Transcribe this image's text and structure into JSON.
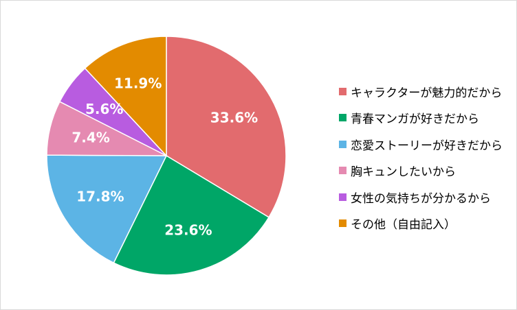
{
  "chart_data": {
    "type": "pie",
    "title": "",
    "start_angle_deg": 0,
    "direction": "clockwise",
    "legend_position": "right",
    "slices": [
      {
        "label": "キャラクターが魅力的だから",
        "value": 33.6,
        "display": "33.6%",
        "color": "#e26b6e"
      },
      {
        "label": "青春マンガが好きだから",
        "value": 23.6,
        "display": "23.6%",
        "color": "#00a667"
      },
      {
        "label": "恋愛ストーリーが好きだから",
        "value": 17.8,
        "display": "17.8%",
        "color": "#5cb4e5"
      },
      {
        "label": "胸キュンしたいから",
        "value": 7.4,
        "display": "7.4%",
        "color": "#e58ab1"
      },
      {
        "label": "女性の気持ちが分かるから",
        "value": 5.6,
        "display": "5.6%",
        "color": "#b85ce0"
      },
      {
        "label": "その他（自由記入）",
        "value": 11.9,
        "display": "11.9%",
        "color": "#e38b00"
      }
    ]
  }
}
